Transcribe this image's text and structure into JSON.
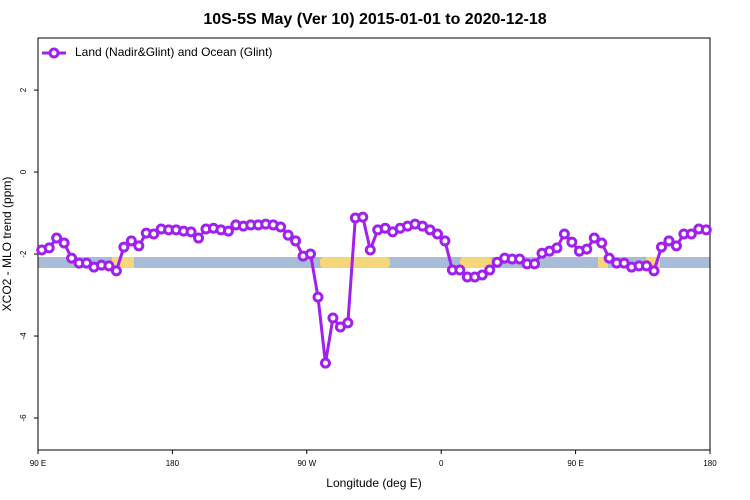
{
  "chart_data": {
    "type": "line",
    "title": "10S-5S May (Ver 10)   2015-01-01 to 2020-12-18",
    "x_label": "Longitude (deg E)",
    "y_label": "XCO2 - MLO trend (ppm)",
    "legend_position": "top-left",
    "xlim": [
      90,
      540
    ],
    "xticks": [
      {
        "value": 90,
        "label": "90 E"
      },
      180,
      {
        "value": 270,
        "label": "90 W"
      },
      {
        "value": 360,
        "label": "0"
      },
      {
        "value": 450,
        "label": "90 E"
      },
      {
        "value": 540,
        "label": "180"
      }
    ],
    "ylim": [
      -6.78,
      3.27
    ],
    "yticks": [
      2,
      0,
      -2,
      -4,
      -6
    ],
    "x": [
      92.5,
      97.5,
      102.5,
      107.5,
      112.5,
      117.5,
      122.5,
      127.5,
      132.5,
      137.5,
      142.5,
      147.5,
      152.5,
      157.5,
      162.5,
      167.5,
      172.5,
      177.5,
      182.5,
      187.5,
      192.5,
      197.5,
      202.5,
      207.5,
      212.5,
      217.5,
      222.5,
      227.5,
      232.5,
      237.5,
      242.5,
      247.5,
      252.5,
      257.5,
      262.5,
      267.5,
      272.5,
      277.5,
      282.5,
      287.5,
      292.5,
      297.5,
      302.5,
      307.5,
      312.5,
      317.5,
      322.5,
      327.5,
      332.5,
      337.5,
      342.5,
      347.5,
      352.5,
      357.5,
      362.5,
      367.5,
      372.5,
      377.5,
      382.5,
      387.5,
      392.5,
      397.5,
      402.5,
      407.5,
      412.5,
      417.5,
      422.5,
      427.5,
      432.5,
      437.5,
      442.5,
      447.5,
      452.5,
      457.5,
      462.5,
      467.5,
      472.5,
      477.5,
      482.5,
      487.5,
      492.5,
      497.5,
      502.5,
      507.5,
      512.5,
      517.5,
      522.5,
      527.5,
      532.5,
      537.5
    ],
    "series": [
      {
        "name": "Land (Nadir&Glint) and Ocean (Glint)",
        "color": "#a020f0",
        "values": [
          -1.9,
          -1.85,
          -1.61,
          -1.73,
          -2.1,
          -2.22,
          -2.22,
          -2.32,
          -2.27,
          -2.29,
          -2.41,
          -1.83,
          -1.68,
          -1.8,
          -1.49,
          -1.51,
          -1.39,
          -1.41,
          -1.41,
          -1.44,
          -1.46,
          -1.61,
          -1.39,
          -1.37,
          -1.41,
          -1.44,
          -1.29,
          -1.32,
          -1.29,
          -1.29,
          -1.27,
          -1.29,
          -1.34,
          -1.54,
          -1.68,
          -2.05,
          -2.0,
          -3.05,
          -4.66,
          -3.56,
          -3.78,
          -3.68,
          -1.12,
          -1.1,
          -1.9,
          -1.41,
          -1.37,
          -1.46,
          -1.37,
          -1.32,
          -1.27,
          -1.32,
          -1.41,
          -1.51,
          -1.68,
          -2.39,
          -2.39,
          -2.56,
          -2.56,
          -2.51,
          -2.39,
          -2.2,
          -2.1,
          -2.12,
          -2.12,
          -2.24,
          -2.24,
          -1.98,
          -1.93,
          -1.85,
          -1.51,
          -1.71,
          -1.93,
          -1.88,
          -1.61,
          -1.73,
          -2.1,
          -2.22,
          -2.22,
          -2.32,
          -2.29,
          -2.29,
          -2.41,
          -1.83,
          -1.68,
          -1.8,
          -1.51,
          -1.51,
          -1.39,
          -1.41
        ]
      }
    ]
  }
}
